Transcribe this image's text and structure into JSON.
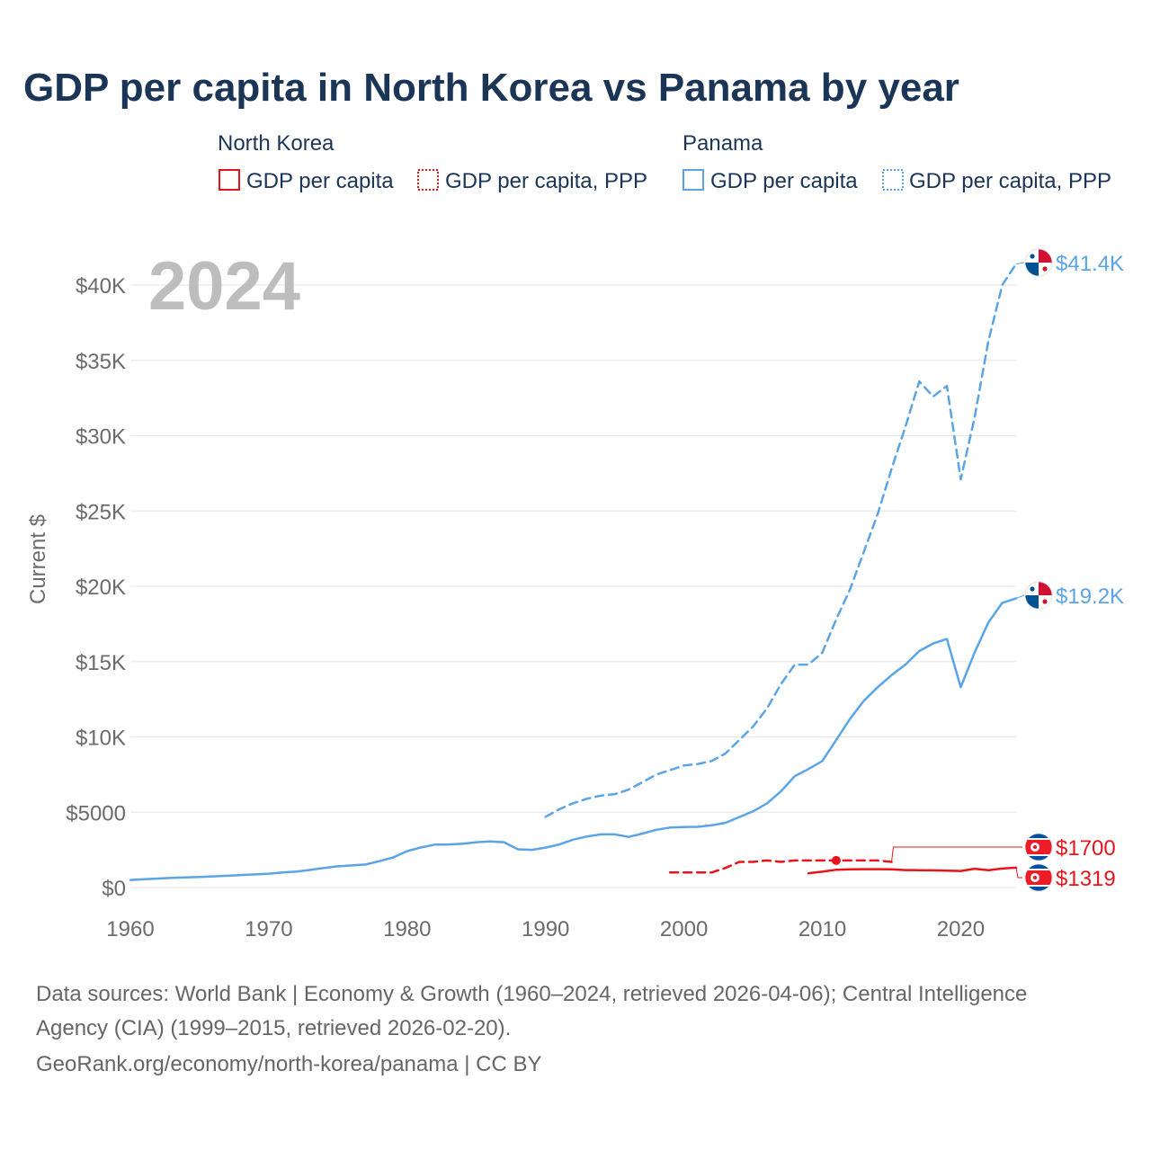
{
  "chart_data": {
    "type": "line",
    "title": "GDP per capita in North Korea vs Panama by year",
    "ylabel": "Current $",
    "xlabel": "",
    "year_label": "2024",
    "xlim": [
      1960,
      2025
    ],
    "ylim": [
      0,
      43000
    ],
    "x_ticks": [
      1960,
      1970,
      1980,
      1990,
      2000,
      2010,
      2020
    ],
    "x_tick_labels": [
      "1960",
      "1970",
      "1980",
      "1990",
      "2000",
      "2010",
      "2020"
    ],
    "y_ticks": [
      0,
      5000,
      10000,
      15000,
      20000,
      25000,
      30000,
      35000,
      40000
    ],
    "y_tick_labels": [
      "$0",
      "$5000",
      "$10K",
      "$15K",
      "$20K",
      "$25K",
      "$30K",
      "$35K",
      "$40K"
    ],
    "legend": {
      "groups": [
        {
          "country": "North Korea",
          "color": "#e8141c",
          "items": [
            "GDP per capita",
            "GDP per capita, PPP"
          ]
        },
        {
          "country": "Panama",
          "color": "#5ba4e5",
          "items": [
            "GDP per capita",
            "GDP per capita, PPP"
          ]
        }
      ]
    },
    "series": [
      {
        "name": "Panama GDP per capita, PPP",
        "country": "Panama",
        "style": "dashed",
        "color": "#5ba4e5",
        "x": [
          1990,
          1991,
          1992,
          1993,
          1994,
          1995,
          1996,
          1997,
          1998,
          1999,
          2000,
          2001,
          2002,
          2003,
          2004,
          2005,
          2006,
          2007,
          2008,
          2009,
          2010,
          2011,
          2012,
          2013,
          2014,
          2015,
          2016,
          2017,
          2018,
          2019,
          2020,
          2021,
          2022,
          2023,
          2024
        ],
        "values": [
          4700,
          5200,
          5600,
          5900,
          6100,
          6200,
          6500,
          7000,
          7500,
          7800,
          8100,
          8200,
          8400,
          8900,
          9800,
          10700,
          11900,
          13500,
          14800,
          14800,
          15600,
          17800,
          19800,
          22300,
          24800,
          27800,
          30600,
          33600,
          32600,
          33300,
          27100,
          31200,
          36300,
          40000,
          41400
        ],
        "end_label": "$41.4K"
      },
      {
        "name": "Panama GDP per capita",
        "country": "Panama",
        "style": "solid",
        "color": "#5ba4e5",
        "x": [
          1960,
          1961,
          1962,
          1963,
          1964,
          1965,
          1966,
          1967,
          1968,
          1969,
          1970,
          1971,
          1972,
          1973,
          1974,
          1975,
          1976,
          1977,
          1978,
          1979,
          1980,
          1981,
          1982,
          1983,
          1984,
          1985,
          1986,
          1987,
          1988,
          1989,
          1990,
          1991,
          1992,
          1993,
          1994,
          1995,
          1996,
          1997,
          1998,
          1999,
          2000,
          2001,
          2002,
          2003,
          2004,
          2005,
          2006,
          2007,
          2008,
          2009,
          2010,
          2011,
          2012,
          2013,
          2014,
          2015,
          2016,
          2017,
          2018,
          2019,
          2020,
          2021,
          2022,
          2023,
          2024
        ],
        "values": [
          500,
          550,
          600,
          640,
          670,
          700,
          740,
          780,
          830,
          870,
          920,
          1000,
          1060,
          1170,
          1300,
          1410,
          1470,
          1530,
          1750,
          2000,
          2420,
          2660,
          2850,
          2860,
          2910,
          3010,
          3060,
          3010,
          2540,
          2500,
          2650,
          2860,
          3180,
          3390,
          3530,
          3530,
          3360,
          3580,
          3830,
          3980,
          4020,
          4030,
          4130,
          4300,
          4680,
          5060,
          5590,
          6380,
          7390,
          7870,
          8400,
          9800,
          11200,
          12400,
          13300,
          14100,
          14800,
          15700,
          16200,
          16500,
          13300,
          15600,
          17600,
          18900,
          19200
        ],
        "end_label": "$19.2K"
      },
      {
        "name": "North Korea GDP per capita, PPP",
        "country": "North Korea",
        "style": "dashed",
        "color": "#e8141c",
        "x": [
          1999,
          2000,
          2001,
          2002,
          2003,
          2004,
          2005,
          2006,
          2007,
          2008,
          2009,
          2010,
          2011,
          2012,
          2013,
          2014,
          2015
        ],
        "values": [
          1000,
          1000,
          1000,
          1000,
          1300,
          1700,
          1700,
          1800,
          1700,
          1800,
          1800,
          1800,
          1800,
          1800,
          1800,
          1800,
          1700
        ],
        "marker_year": 2011,
        "end_label": "$1700"
      },
      {
        "name": "North Korea GDP per capita",
        "country": "North Korea",
        "style": "solid",
        "color": "#e8141c",
        "x": [
          2009,
          2010,
          2011,
          2012,
          2013,
          2014,
          2015,
          2016,
          2017,
          2018,
          2019,
          2020,
          2021,
          2022,
          2023,
          2024
        ],
        "values": [
          950,
          1050,
          1180,
          1210,
          1220,
          1220,
          1210,
          1160,
          1150,
          1140,
          1120,
          1100,
          1250,
          1150,
          1260,
          1319
        ],
        "end_label": "$1319"
      }
    ],
    "footer": {
      "sources": "Data sources: World Bank | Economy & Growth (1960–2024, retrieved 2026-04-06); Central Intelligence",
      "sources_cont": "Agency (CIA) (1999–2015, retrieved 2026-02-20).",
      "url": "GeoRank.org/economy/north-korea/panama | CC BY"
    }
  }
}
